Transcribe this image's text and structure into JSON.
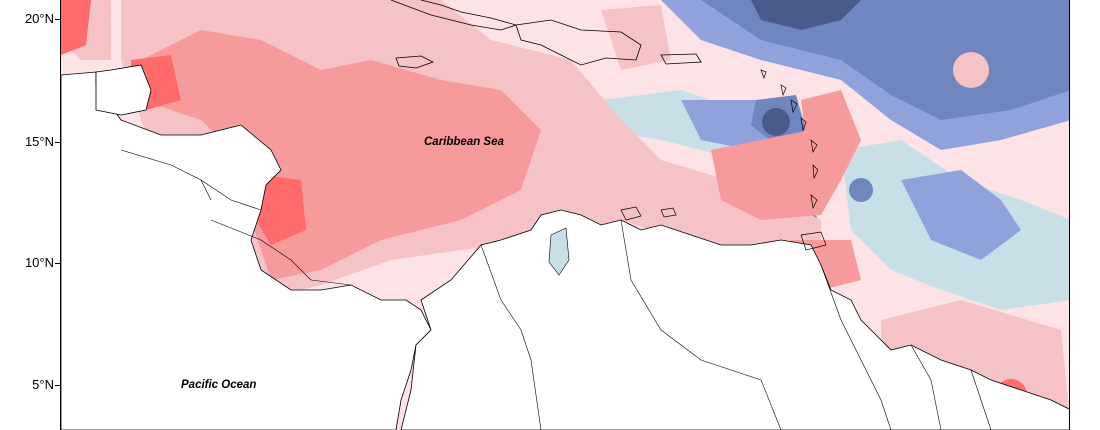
{
  "axis": {
    "y_ticks": [
      "20°N",
      "15°N",
      "10°N",
      "5°N"
    ]
  },
  "labels": {
    "sea": "Caribbean Sea",
    "ocean": "Pacific Ocean"
  },
  "colors": {
    "strong_red": "#ff6b6b",
    "red": "#f79a9c",
    "light_red": "#f5c2c6",
    "pale_red": "#fde3e6",
    "pale_blue": "#c9dfe8",
    "blue": "#8fa2dc",
    "dark_blue": "#6f86bf",
    "navy": "#4a5a8a",
    "land": "#ffffff",
    "coast": "#000000"
  }
}
